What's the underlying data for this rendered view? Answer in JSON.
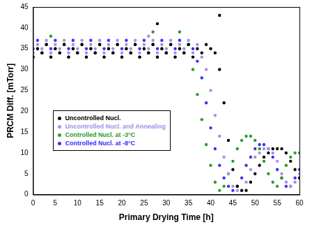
{
  "chart_data": {
    "type": "scatter",
    "x_label": "Primary Drying Time [h]",
    "y_label": "PRCM Diff. [mTorr]",
    "xlim": [
      0,
      60
    ],
    "xticks": [
      0,
      5,
      10,
      15,
      20,
      25,
      30,
      35,
      40,
      45,
      50,
      55,
      60
    ],
    "ylim": [
      0,
      45
    ],
    "yticks": [
      0,
      5,
      10,
      15,
      20,
      25,
      30,
      35,
      40,
      45
    ],
    "grid": false,
    "legend": "left",
    "marker": "circle",
    "series": [
      {
        "name": "Uncontrolled Nucl.",
        "color": "#000000",
        "x": [
          0,
          1,
          2,
          3,
          4,
          5,
          6,
          7,
          8,
          9,
          10,
          11,
          12,
          13,
          14,
          15,
          16,
          17,
          18,
          19,
          20,
          21,
          22,
          23,
          24,
          25,
          26,
          27,
          28,
          29,
          30,
          31,
          32,
          33,
          34,
          35,
          36,
          37,
          38,
          39,
          40,
          41,
          42,
          43,
          44,
          45,
          46,
          47,
          48,
          49,
          50,
          51,
          52,
          53,
          54,
          55,
          56,
          57,
          58,
          59,
          60,
          28,
          42
        ],
        "values": [
          33,
          35,
          34,
          36,
          33,
          35,
          34,
          36,
          33,
          35,
          34,
          36,
          33,
          35,
          34,
          36,
          33,
          35,
          34,
          36,
          33,
          35,
          34,
          36,
          33,
          35,
          34,
          36,
          33,
          35,
          34,
          36,
          33,
          35,
          34,
          36,
          33,
          35,
          34,
          36,
          35,
          34,
          30,
          22,
          13,
          6,
          2,
          1,
          1,
          3,
          5,
          7,
          9,
          10,
          11,
          11,
          11,
          10,
          8,
          6,
          4,
          41,
          43
        ]
      },
      {
        "name": "Uncontrolled Nucl. and Annealing",
        "color": "#a98ee8",
        "x": [
          0,
          1,
          2,
          3,
          4,
          5,
          6,
          7,
          8,
          9,
          10,
          11,
          12,
          13,
          14,
          15,
          16,
          17,
          18,
          19,
          20,
          21,
          22,
          23,
          24,
          25,
          26,
          27,
          28,
          29,
          30,
          31,
          32,
          33,
          34,
          35,
          36,
          37,
          38,
          39,
          40,
          41,
          42,
          43,
          44,
          45,
          46,
          47,
          48,
          49,
          50,
          51,
          52,
          53,
          54,
          55,
          56,
          57,
          58,
          59,
          60,
          26
        ],
        "values": [
          34,
          36,
          35,
          37,
          34,
          36,
          35,
          37,
          34,
          36,
          35,
          37,
          34,
          36,
          35,
          37,
          34,
          36,
          35,
          37,
          34,
          36,
          35,
          37,
          34,
          36,
          35,
          37,
          34,
          36,
          35,
          37,
          34,
          36,
          35,
          37,
          34,
          36,
          33,
          30,
          25,
          19,
          14,
          9,
          5,
          2,
          1,
          1,
          3,
          6,
          9,
          10,
          11,
          11,
          10,
          8,
          5,
          3,
          2,
          3,
          5,
          38
        ]
      },
      {
        "name": "Controlled Nucl. at -3°C",
        "color": "#2e9a2e",
        "x": [
          0,
          1,
          2,
          3,
          4,
          5,
          6,
          7,
          8,
          9,
          10,
          11,
          12,
          13,
          14,
          15,
          16,
          17,
          18,
          19,
          20,
          21,
          22,
          23,
          24,
          25,
          26,
          27,
          28,
          29,
          30,
          31,
          32,
          33,
          34,
          35,
          36,
          37,
          38,
          39,
          40,
          41,
          42,
          43,
          44,
          45,
          46,
          47,
          48,
          49,
          50,
          51,
          52,
          53,
          54,
          55,
          56,
          57,
          58,
          59,
          60,
          4,
          27,
          33
        ],
        "values": [
          33,
          35,
          34,
          36,
          33,
          35,
          34,
          36,
          33,
          35,
          34,
          36,
          33,
          35,
          34,
          36,
          33,
          35,
          34,
          36,
          33,
          35,
          34,
          36,
          33,
          35,
          34,
          36,
          33,
          35,
          34,
          36,
          33,
          35,
          34,
          36,
          30,
          24,
          18,
          12,
          7,
          3,
          1,
          2,
          5,
          8,
          11,
          13,
          14,
          14,
          13,
          11,
          8,
          5,
          3,
          2,
          4,
          7,
          9,
          10,
          10,
          38,
          39,
          39
        ]
      },
      {
        "name": "Controlled Nucl. at -8°C",
        "color": "#3333ff",
        "x": [
          0,
          1,
          2,
          3,
          4,
          5,
          6,
          7,
          8,
          9,
          10,
          11,
          12,
          13,
          14,
          15,
          16,
          17,
          18,
          19,
          20,
          21,
          22,
          23,
          24,
          25,
          26,
          27,
          28,
          29,
          30,
          31,
          32,
          33,
          34,
          35,
          36,
          37,
          38,
          39,
          40,
          41,
          42,
          43,
          44,
          45,
          46,
          47,
          48,
          49,
          50,
          51,
          52,
          53,
          54,
          55,
          56,
          57,
          58,
          59,
          60
        ],
        "values": [
          35,
          37,
          34,
          36,
          35,
          37,
          34,
          36,
          35,
          37,
          34,
          36,
          35,
          37,
          34,
          36,
          35,
          37,
          34,
          36,
          35,
          37,
          34,
          36,
          35,
          37,
          34,
          36,
          35,
          37,
          34,
          36,
          35,
          37,
          34,
          36,
          35,
          32,
          28,
          22,
          16,
          11,
          7,
          4,
          2,
          1,
          2,
          4,
          7,
          9,
          11,
          12,
          12,
          11,
          9,
          6,
          4,
          2,
          2,
          4,
          6
        ]
      }
    ]
  }
}
